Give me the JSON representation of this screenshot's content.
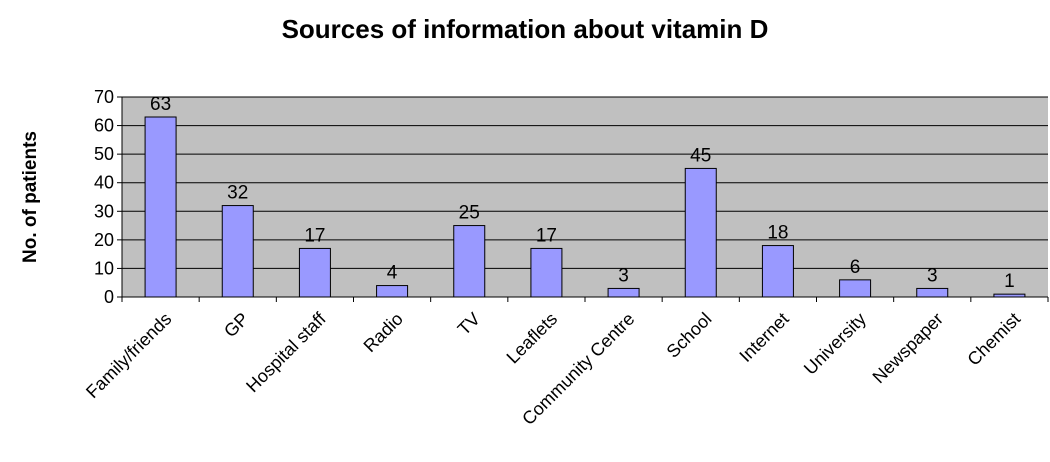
{
  "chart_data": {
    "type": "bar",
    "title": "Sources of information about vitamin D",
    "xlabel": "",
    "ylabel": "No. of patients",
    "ylim": [
      0,
      70
    ],
    "yticks": [
      0,
      10,
      20,
      30,
      40,
      50,
      60,
      70
    ],
    "grid": true,
    "categories": [
      "Family/friends",
      "GP",
      "Hospital staff",
      "Radio",
      "TV",
      "Leaflets",
      "Community Centre",
      "School",
      "Internet",
      "University",
      "Newspaper",
      "Chemist"
    ],
    "values": [
      63,
      32,
      17,
      4,
      25,
      17,
      3,
      45,
      18,
      6,
      3,
      1
    ],
    "colors": {
      "plot_background": "#c0c0c0",
      "bar_fill": "#9999ff",
      "bar_stroke": "#000000",
      "gridline": "#000000"
    }
  }
}
